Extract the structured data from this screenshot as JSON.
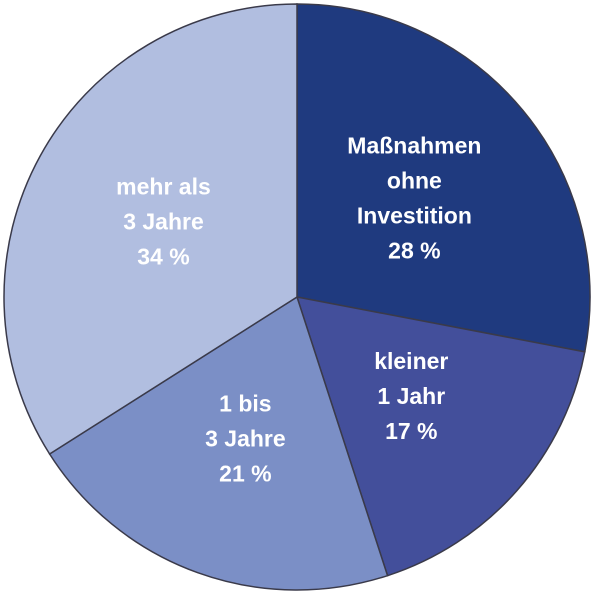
{
  "chart_data": {
    "type": "pie",
    "categories": [
      [
        "Maßnahmen",
        "ohne",
        "Investition"
      ],
      [
        "kleiner",
        "1 Jahr"
      ],
      [
        "1 bis",
        "3 Jahre"
      ],
      [
        "mehr als",
        "3 Jahre"
      ]
    ],
    "values": [
      28,
      17,
      21,
      34
    ],
    "value_labels": [
      "28 %",
      "17 %",
      "21 %",
      "34 %"
    ],
    "colors": [
      "#1f3a7f",
      "#434f9b",
      "#7b8fc6",
      "#b1bee0"
    ]
  }
}
